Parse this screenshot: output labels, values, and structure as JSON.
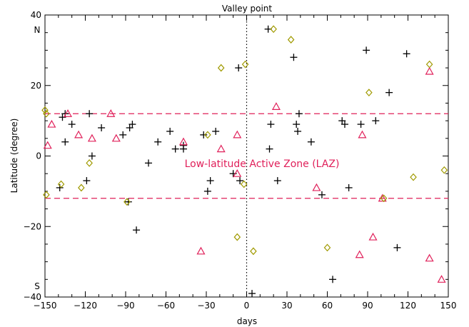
{
  "chart_data": {
    "type": "scatter",
    "title": "Valley point",
    "xlabel": "days",
    "ylabel": "Latitude  (degree)",
    "xlim": [
      -150,
      150
    ],
    "ylim": [
      -40,
      40
    ],
    "xticks": [
      -150,
      -120,
      -90,
      -60,
      -30,
      0,
      30,
      60,
      90,
      120,
      150
    ],
    "yticks": [
      -40,
      -20,
      0,
      20,
      40
    ],
    "hemisphere_labels": {
      "north": "N",
      "south": "S"
    },
    "annotation": "Low-latitude Active Zone (LAZ)",
    "laz_bounds": [
      12,
      -12
    ],
    "colors": {
      "plus": "#000000",
      "triangle": "#e0205a",
      "diamond": "#a09a00",
      "dashed_line": "#e0205a",
      "zero_line": "#000000"
    },
    "grid": false,
    "series": [
      {
        "marker": "plus",
        "points": [
          [
            -137,
            11
          ],
          [
            -135,
            12
          ],
          [
            -130,
            9
          ],
          [
            -135,
            4
          ],
          [
            -139,
            -9
          ],
          [
            -117,
            12
          ],
          [
            -115,
            0
          ],
          [
            -119,
            -7
          ],
          [
            -108,
            8
          ],
          [
            -92,
            6
          ],
          [
            -87,
            8
          ],
          [
            -85,
            9
          ],
          [
            -88,
            -13
          ],
          [
            -82,
            -21
          ],
          [
            -73,
            -2
          ],
          [
            -66,
            4
          ],
          [
            -57,
            7
          ],
          [
            -53,
            2
          ],
          [
            -47,
            2
          ],
          [
            -47,
            3
          ],
          [
            -32,
            6
          ],
          [
            -27,
            -7
          ],
          [
            -29,
            -10
          ],
          [
            -23,
            7
          ],
          [
            -10,
            -5
          ],
          [
            -6,
            25
          ],
          [
            -5,
            -7
          ],
          [
            4,
            -39
          ],
          [
            16,
            36
          ],
          [
            17,
            2
          ],
          [
            18,
            9
          ],
          [
            23,
            -7
          ],
          [
            35,
            28
          ],
          [
            37,
            9
          ],
          [
            38,
            7
          ],
          [
            39,
            12
          ],
          [
            48,
            4
          ],
          [
            56,
            -11
          ],
          [
            71,
            10
          ],
          [
            73,
            9
          ],
          [
            76,
            -9
          ],
          [
            85,
            9
          ],
          [
            89,
            30
          ],
          [
            96,
            10
          ],
          [
            106,
            18
          ],
          [
            112,
            -26
          ],
          [
            119,
            29
          ],
          [
            64,
            -35
          ]
        ]
      },
      {
        "marker": "triangle",
        "points": [
          [
            -148,
            3
          ],
          [
            -145,
            9
          ],
          [
            -133,
            12
          ],
          [
            -125,
            6
          ],
          [
            -115,
            5
          ],
          [
            -101,
            12
          ],
          [
            -97,
            5
          ],
          [
            -47,
            4
          ],
          [
            -19,
            2
          ],
          [
            -34,
            -27
          ],
          [
            -7,
            6
          ],
          [
            -7,
            -5
          ],
          [
            22,
            14
          ],
          [
            52,
            -9
          ],
          [
            84,
            -28
          ],
          [
            86,
            6
          ],
          [
            94,
            -23
          ],
          [
            101,
            -12
          ],
          [
            136,
            24
          ],
          [
            136,
            -29
          ],
          [
            145,
            -35
          ]
        ]
      },
      {
        "marker": "diamond",
        "points": [
          [
            -150,
            13
          ],
          [
            -149,
            12
          ],
          [
            -149,
            -11
          ],
          [
            -138,
            -8
          ],
          [
            -123,
            -9
          ],
          [
            -117,
            -2
          ],
          [
            -89,
            -13
          ],
          [
            -29,
            6
          ],
          [
            -19,
            25
          ],
          [
            -7,
            -23
          ],
          [
            -2,
            -8
          ],
          [
            -1,
            26
          ],
          [
            5,
            -27
          ],
          [
            20,
            36
          ],
          [
            33,
            33
          ],
          [
            60,
            -26
          ],
          [
            91,
            18
          ],
          [
            102,
            -12
          ],
          [
            124,
            -6
          ],
          [
            136,
            26
          ],
          [
            147,
            -4
          ]
        ]
      }
    ]
  }
}
